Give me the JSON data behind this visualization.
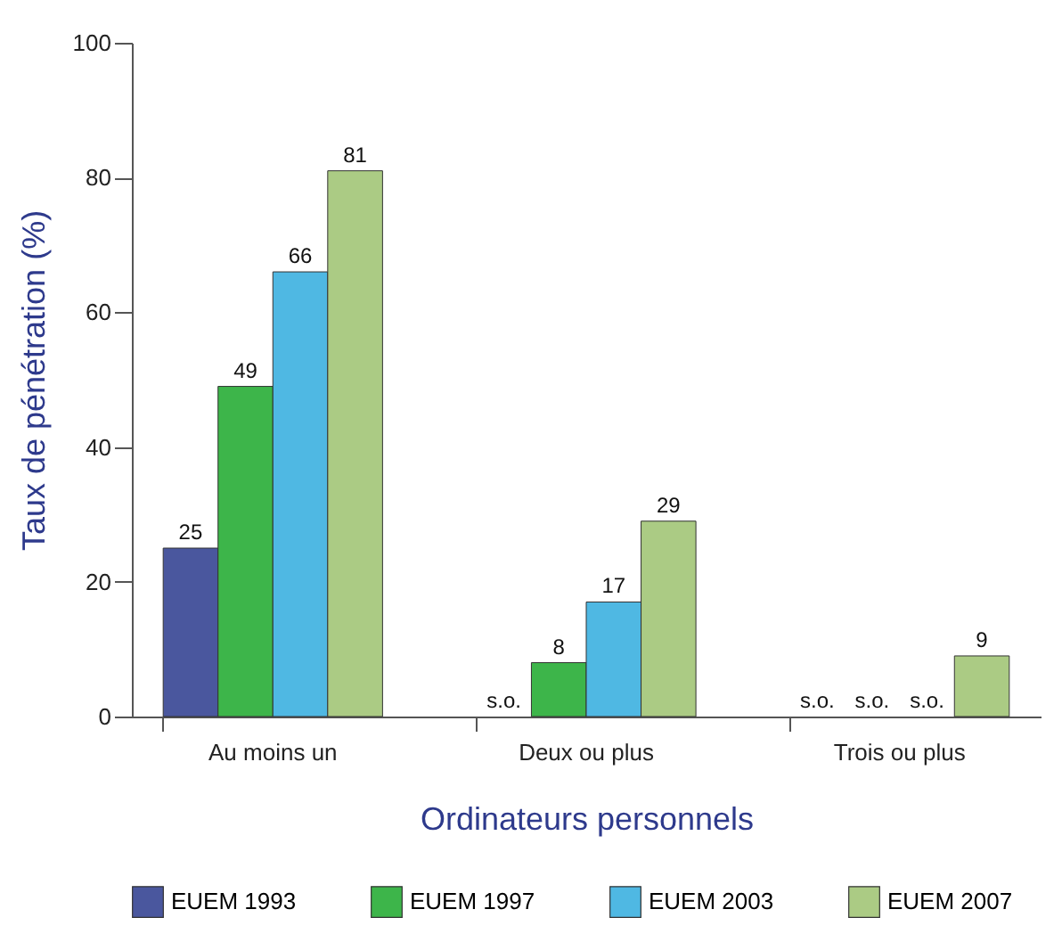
{
  "chart_data": {
    "type": "bar",
    "xlabel": "Ordinateurs personnels",
    "ylabel": "Taux de pénétration (%)",
    "categories": [
      "Au moins un",
      "Deux ou plus",
      "Trois ou plus"
    ],
    "series": [
      {
        "name": "EUEM 1993",
        "color": "#4a579e",
        "values": [
          25,
          null,
          null
        ],
        "value_labels": [
          "25",
          "s.o.",
          "s.o."
        ]
      },
      {
        "name": "EUEM 1997",
        "color": "#3db54a",
        "values": [
          49,
          8,
          null
        ],
        "value_labels": [
          "49",
          "8",
          "s.o."
        ]
      },
      {
        "name": "EUEM 2003",
        "color": "#4fb8e3",
        "values": [
          66,
          17,
          null
        ],
        "value_labels": [
          "66",
          "17",
          "s.o."
        ]
      },
      {
        "name": "EUEM 2007",
        "color": "#abcb84",
        "values": [
          81,
          29,
          9
        ],
        "value_labels": [
          "81",
          "29",
          "9"
        ]
      }
    ],
    "ylim": [
      0,
      100
    ],
    "yticks": [
      0,
      20,
      40,
      60,
      80,
      100
    ],
    "grid": false,
    "legend": "bottom"
  }
}
